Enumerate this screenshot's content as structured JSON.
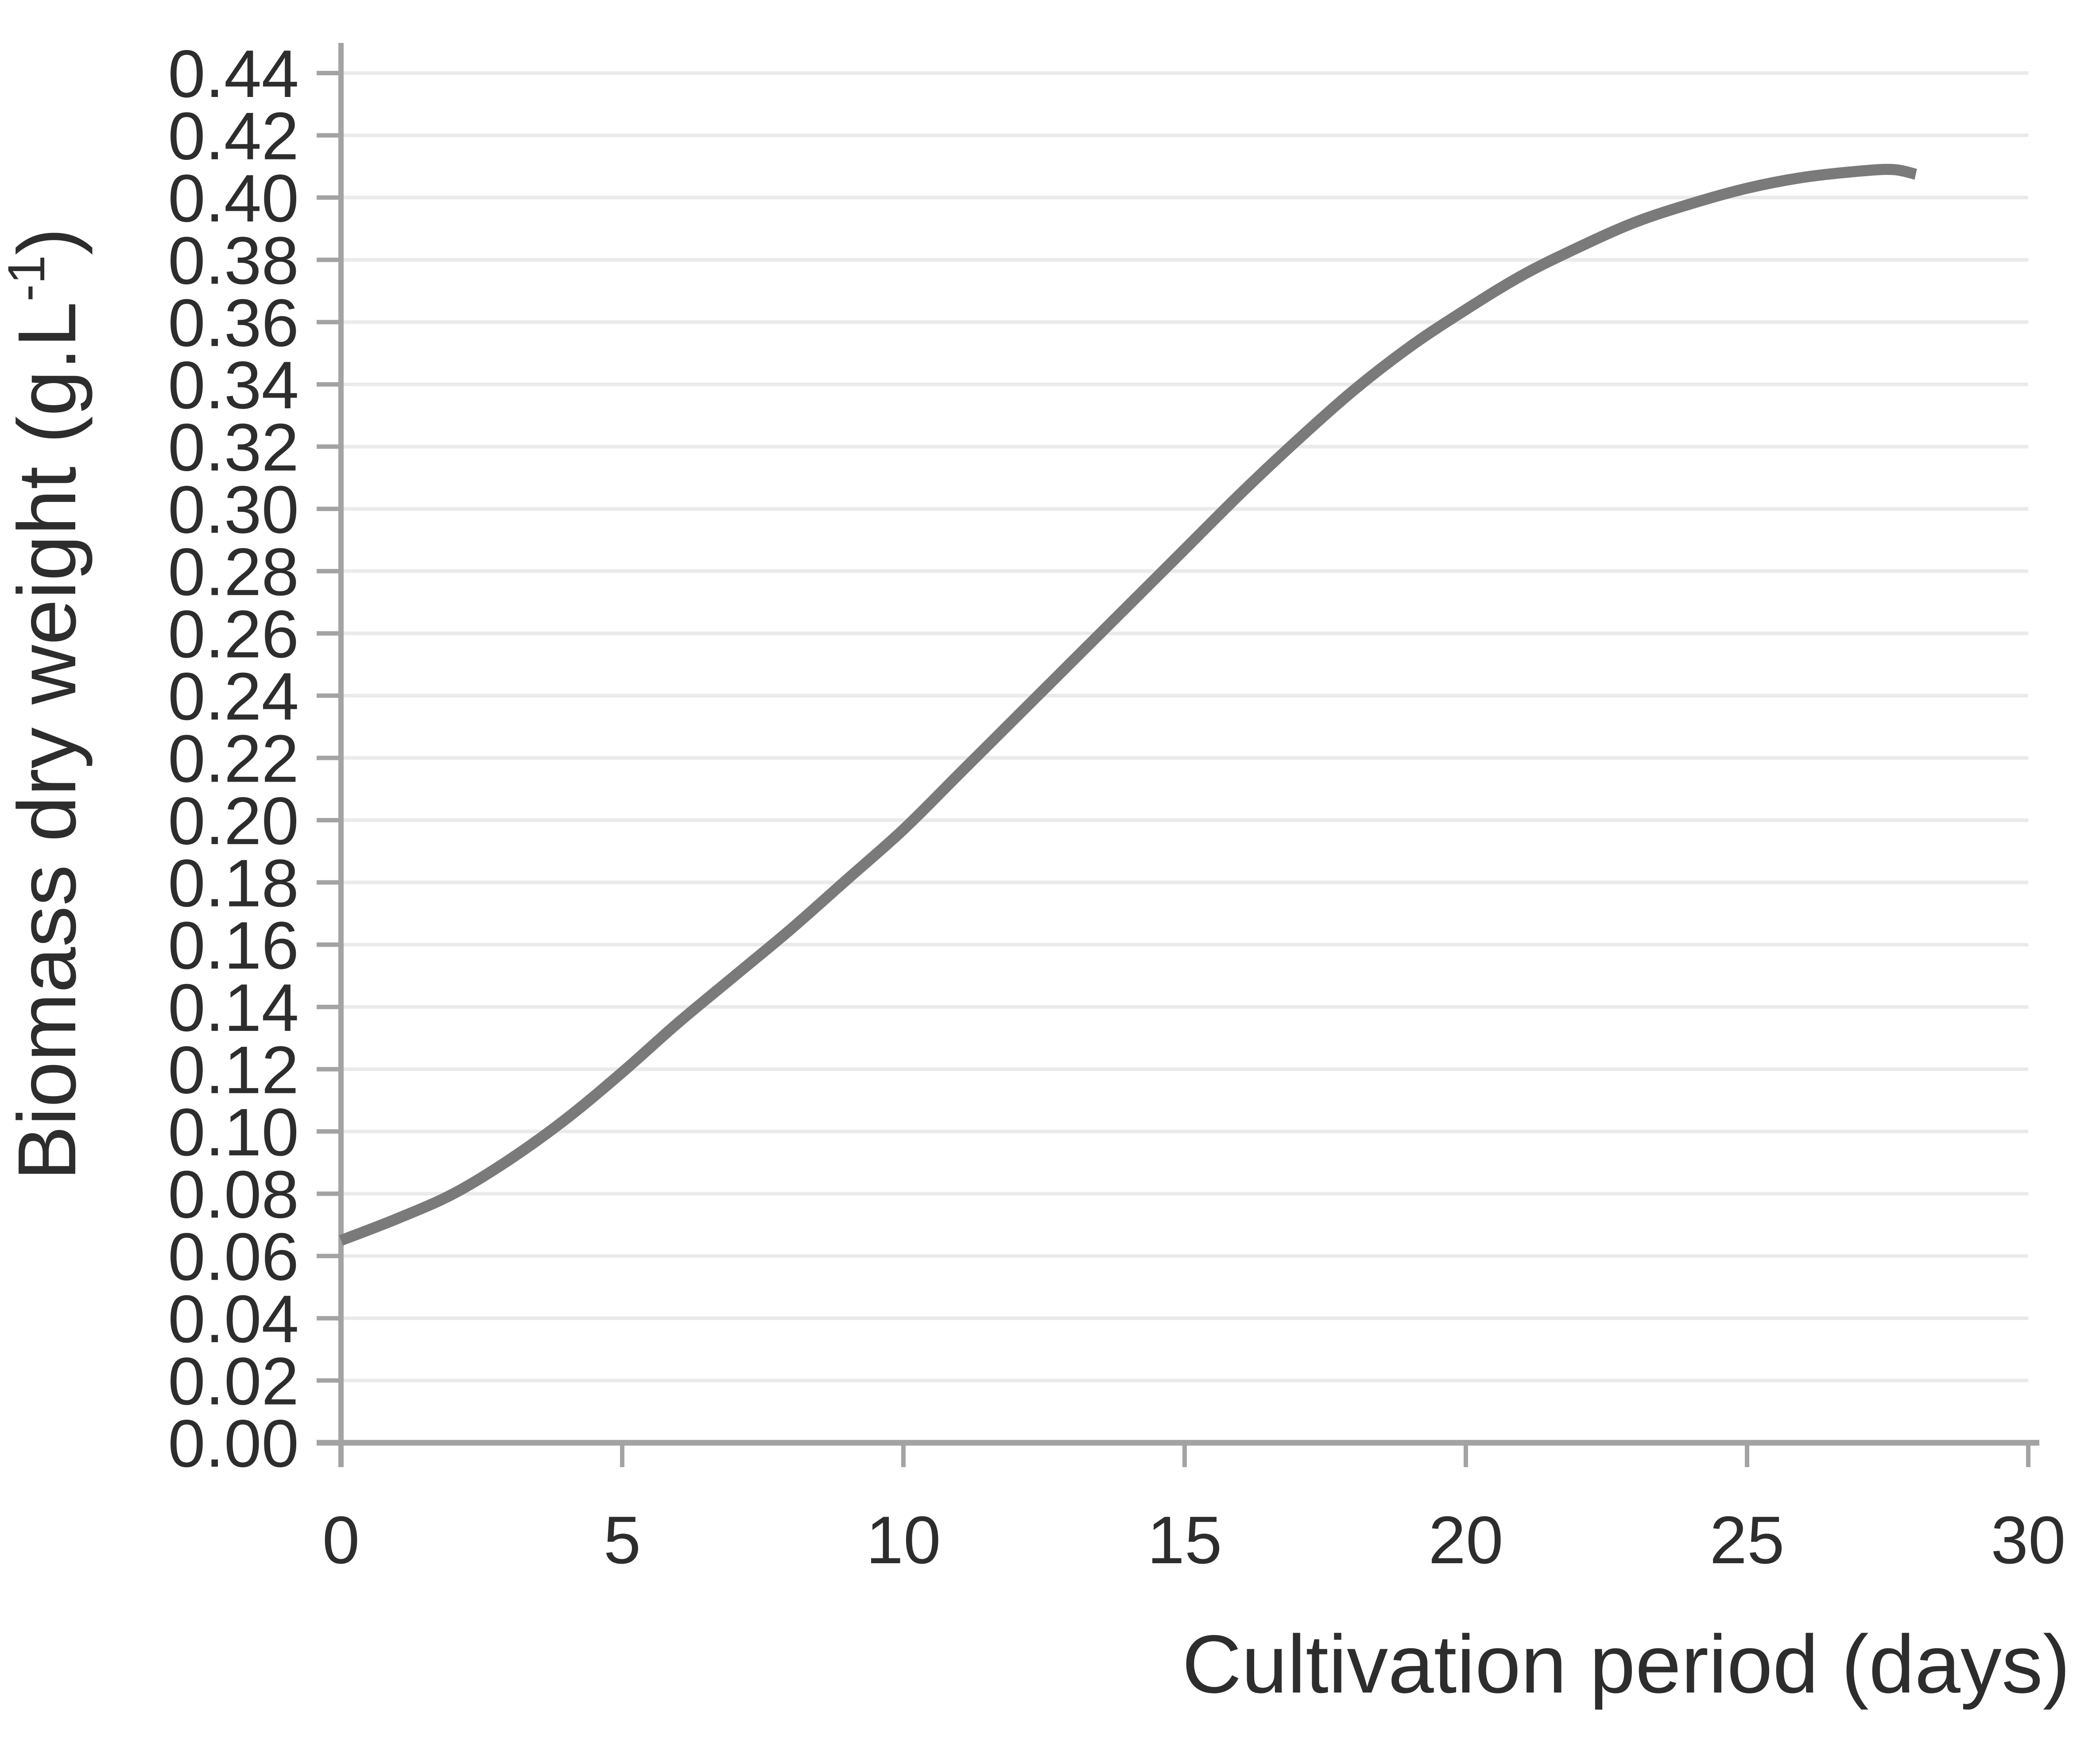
{
  "chart_data": {
    "type": "line",
    "title": "",
    "xlabel": "Cultivation period (days)",
    "ylabel": "Biomass dry weight (g.L-1)",
    "ylabel_parts": {
      "prefix": "Biomass dry weight (g.L",
      "superscript": "-1",
      "suffix": ")"
    },
    "xlim": [
      0,
      30
    ],
    "ylim": [
      0.0,
      0.44
    ],
    "x_ticks": [
      0,
      5,
      10,
      15,
      20,
      25,
      30
    ],
    "x_tick_labels": [
      "0",
      "5",
      "10",
      "15",
      "20",
      "25",
      "30"
    ],
    "y_ticks": [
      0.0,
      0.02,
      0.04,
      0.06,
      0.08,
      0.1,
      0.12,
      0.14,
      0.16,
      0.18,
      0.2,
      0.22,
      0.24,
      0.26,
      0.28,
      0.3,
      0.32,
      0.34,
      0.36,
      0.38,
      0.4,
      0.42,
      0.44
    ],
    "y_tick_labels": [
      "0.00",
      "0.02",
      "0.04",
      "0.06",
      "0.08",
      "0.10",
      "0.12",
      "0.14",
      "0.16",
      "0.18",
      "0.20",
      "0.22",
      "0.24",
      "0.26",
      "0.28",
      "0.30",
      "0.32",
      "0.34",
      "0.36",
      "0.38",
      "0.40",
      "0.42",
      "0.44"
    ],
    "grid": "horizontal",
    "legend": "none",
    "series": [
      {
        "name": "biomass-dry-weight",
        "x": [
          0,
          1,
          2,
          3,
          4,
          5,
          6,
          7,
          8,
          9,
          10,
          11,
          12,
          13,
          14,
          15,
          16,
          17,
          18,
          19,
          20,
          21,
          22,
          23,
          24,
          25,
          26,
          27,
          27.6,
          28
        ],
        "y": [
          0.065,
          0.072,
          0.08,
          0.091,
          0.104,
          0.119,
          0.135,
          0.15,
          0.165,
          0.181,
          0.197,
          0.215,
          0.233,
          0.251,
          0.269,
          0.287,
          0.305,
          0.322,
          0.338,
          0.352,
          0.364,
          0.375,
          0.384,
          0.392,
          0.398,
          0.403,
          0.4065,
          0.4085,
          0.409,
          0.4075
        ]
      }
    ],
    "colors": {
      "curve": "#7a7a7a",
      "axis": "#a3a3a3",
      "gridline": "#eaeaea",
      "text": "#2d2d2d"
    }
  }
}
